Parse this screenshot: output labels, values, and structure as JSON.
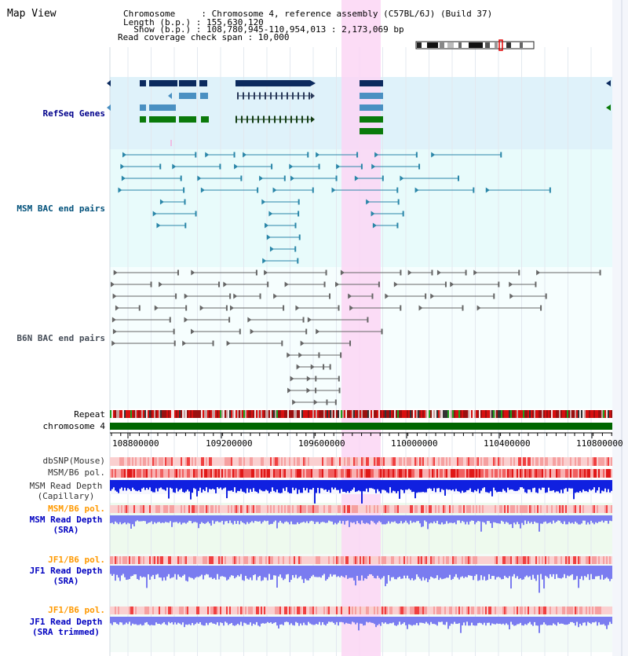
{
  "page": {
    "title": "Map View"
  },
  "header": {
    "lines": [
      "Chromosome     : Chromosome 4, reference assembly (C57BL/6J) (Build 37)",
      "Length (b.p.) : 155,630,120",
      "  Show (b.p.) : 108,780,945-110,954,013 : 2,173,069 bp",
      "Read coverage check span : 10,000"
    ]
  },
  "tracks": {
    "refseq": "RefSeq Genes",
    "msm_bac": "MSM BAC end pairs",
    "b6n_bac": "B6N BAC end pairs",
    "repeat": "Repeat",
    "chromosome": "chromosome 4",
    "dbsnp": "dbSNP(Mouse)",
    "msm_b6_pol": "MSM/B6 pol.",
    "msm_depth_cap": [
      "MSM Read Depth",
      "(Capillary)"
    ],
    "msm_b6_pol2": "MSM/B6 pol.",
    "msm_depth_sra": [
      "MSM Read Depth",
      "(SRA)"
    ],
    "jf1_b6_pol": "JF1/B6 pol.",
    "jf1_depth_sra": [
      "JF1 Read Depth",
      "(SRA)"
    ],
    "jf1_b6_pol2": "JF1/B6 pol.",
    "jf1_depth_trim": [
      "JF1 Read Depth",
      "(SRA trimmed)"
    ]
  },
  "axis": {
    "ticks": [
      "108800000",
      "109200000",
      "109600000",
      "110000000",
      "110400000",
      "110800000"
    ]
  },
  "colors": {
    "refseq_bg": "#dff2fa",
    "bac_bg": "#e8fbfb",
    "highlight": "#fcd6f4",
    "navy": "#0b2a5e",
    "mid_blue": "#4a90c2",
    "green": "#0a7a0a",
    "teal_line": "#2a86a8",
    "gray_line": "#666666",
    "chrom_green": "#006600",
    "depth_blue": "#1020e0",
    "depth_light": "#7a7cf0"
  }
}
